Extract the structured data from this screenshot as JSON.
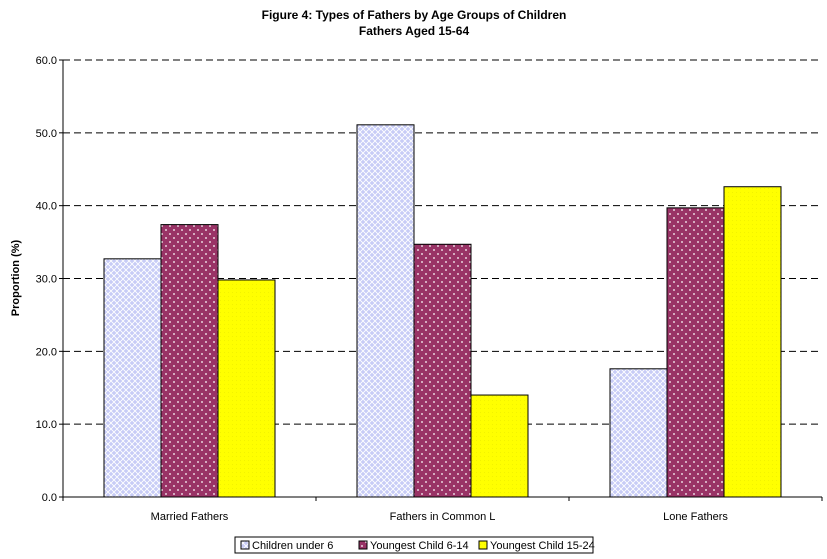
{
  "chart_data": {
    "type": "bar",
    "title": "Figure 4: Types of Fathers by Age Groups of Children",
    "subtitle": "Fathers Aged 15-64",
    "xlabel": "",
    "ylabel": "Proportion (%)",
    "ylim": [
      0,
      60
    ],
    "yticks": [
      "0.0",
      "10.0",
      "20.0",
      "30.0",
      "40.0",
      "50.0",
      "60.0"
    ],
    "grid": true,
    "legend_position": "bottom",
    "categories": [
      "Married Fathers",
      "Fathers in Common L",
      "Lone Fathers"
    ],
    "series": [
      {
        "name": "Children under 6",
        "color": "#c5c8f4",
        "values": [
          32.7,
          51.1,
          17.6
        ]
      },
      {
        "name": "Youngest Child 6-14",
        "color": "#993366",
        "values": [
          37.4,
          34.7,
          39.7
        ]
      },
      {
        "name": "Youngest Child 15-24",
        "color": "#ffff00",
        "values": [
          29.8,
          14.0,
          42.6
        ]
      }
    ]
  }
}
